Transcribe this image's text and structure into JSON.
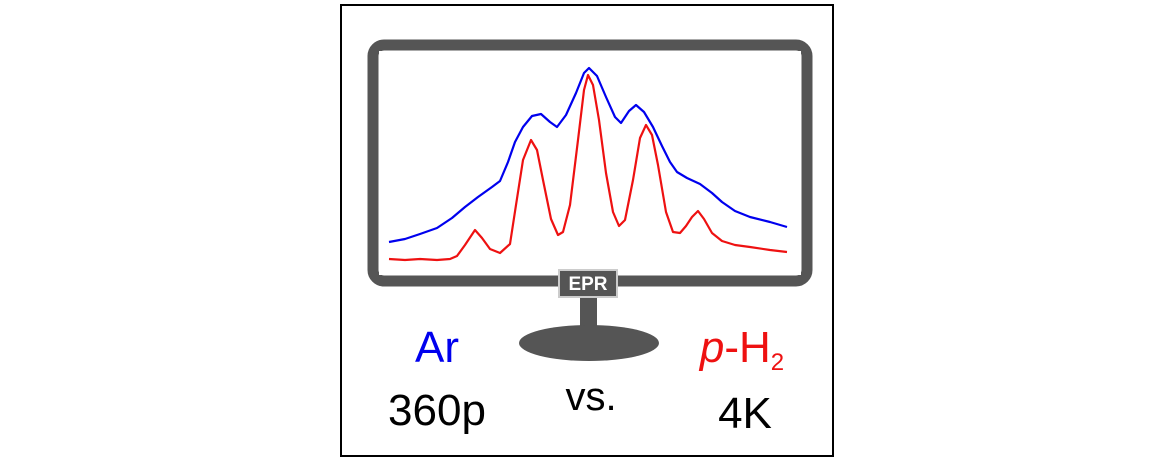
{
  "colors": {
    "ar": "#0000ee",
    "ph2": "#ee1111",
    "monitor": "#555555",
    "frame": "#000000",
    "text": "#000000"
  },
  "monitor": {
    "badge_label": "EPR"
  },
  "labels": {
    "left_matrix": "Ar",
    "left_resolution": "360p",
    "middle": "vs.",
    "right_matrix_italic": "p",
    "right_matrix_rest": "-H",
    "right_matrix_subscript": "2",
    "right_resolution": "4K"
  }
}
